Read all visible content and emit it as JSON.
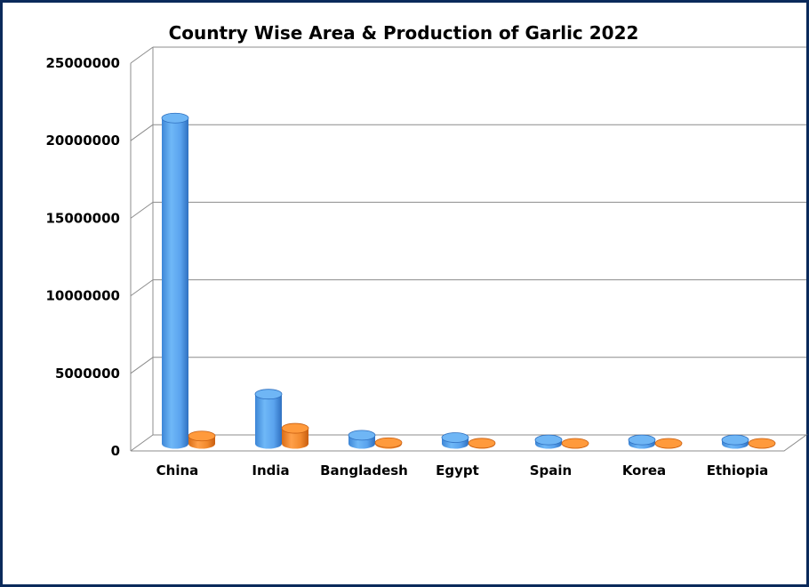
{
  "chart_data": {
    "type": "bar",
    "title": "Country Wise Area & Production of Garlic 2022",
    "xlabel": "",
    "ylabel": "",
    "categories": [
      "China",
      "India",
      "Bangladesh",
      "Egypt",
      "Spain",
      "Korea",
      "Ethiopia"
    ],
    "series": [
      {
        "values": [
          21000000,
          3200000,
          550000,
          400000,
          250000,
          250000,
          250000
        ],
        "color": "#5aa9f0"
      },
      {
        "values": [
          500000,
          1000000,
          70000,
          40000,
          30000,
          30000,
          30000
        ],
        "color": "#f28a2e"
      }
    ],
    "ylim": [
      0,
      25000000
    ],
    "yticks": [
      "0",
      "5000000",
      "10000000",
      "15000000",
      "20000000",
      "25000000"
    ],
    "grid": true,
    "legend": "none",
    "style": "3d-cylinder"
  }
}
